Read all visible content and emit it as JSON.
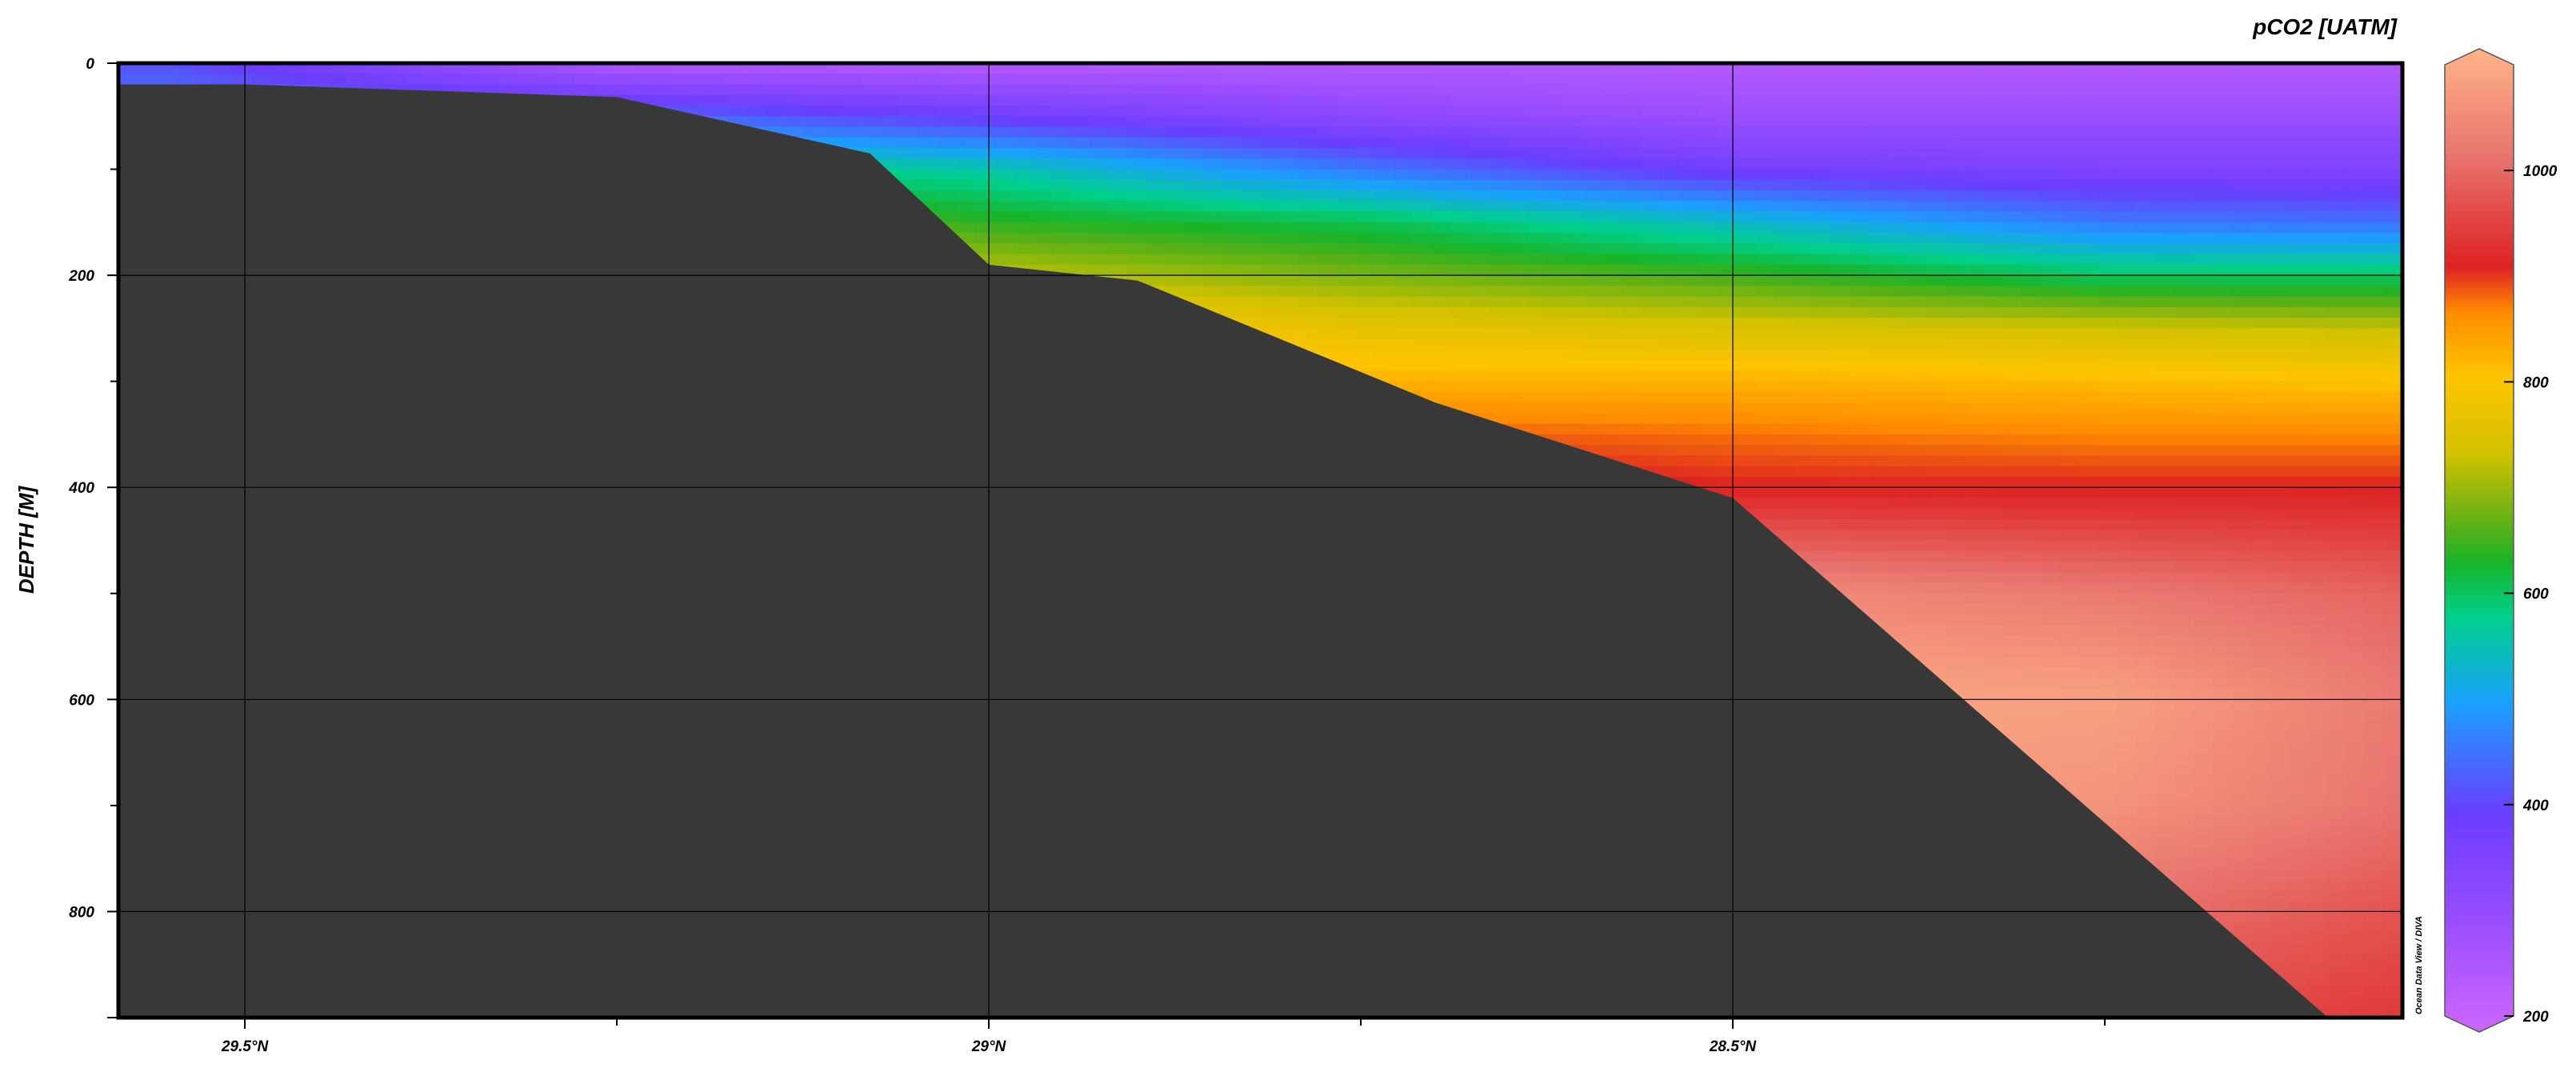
{
  "chart_data": {
    "type": "heatmap",
    "variable_label": "pCO2 [UATM]",
    "ylabel": "DEPTH [M]",
    "xlabel": "",
    "credit": "Ocean Data View / DIVA",
    "x_axis": {
      "unit": "degrees N latitude",
      "reversed": true,
      "range": [
        29.585,
        28.05
      ],
      "ticks": [
        29.5,
        29.0,
        28.5
      ],
      "tick_labels": [
        "29.5°N",
        "29°N",
        "28.5°N"
      ],
      "minor_ticks": [
        29.75,
        29.25,
        28.75,
        28.25
      ]
    },
    "y_axis": {
      "unit": "m",
      "reversed": true,
      "range": [
        0,
        900
      ],
      "ticks": [
        0,
        200,
        400,
        600,
        800
      ],
      "tick_labels": [
        "0",
        "200",
        "400",
        "600",
        "800"
      ],
      "minor_ticks": [
        100,
        300,
        500,
        700
      ]
    },
    "colorbar": {
      "range": [
        200,
        1100
      ],
      "ticks": [
        200,
        400,
        600,
        800,
        1000
      ],
      "tick_labels": [
        "200",
        "400",
        "600",
        "800",
        "1000"
      ],
      "extend": "both",
      "colors": [
        "#cc66ff",
        "#9b4dff",
        "#6a3dff",
        "#1aa0ff",
        "#00d08a",
        "#19b429",
        "#55b018",
        "#d4c200",
        "#ffc400",
        "#ff8a00",
        "#dd2222",
        "#e8736e",
        "#ffb488"
      ],
      "color_positions": [
        200,
        300,
        400,
        500,
        580,
        630,
        660,
        730,
        800,
        860,
        900,
        1000,
        1100
      ]
    },
    "grid": true,
    "bathymetry": {
      "color": "#383838",
      "lat": [
        29.585,
        29.5,
        29.25,
        29.08,
        29.0,
        28.9,
        28.7,
        28.5,
        28.1
      ],
      "depth": [
        20,
        20,
        32,
        85,
        190,
        205,
        320,
        410,
        900
      ]
    },
    "field": {
      "description": "Gridded pCO2 values (uatm) by latitude and depth",
      "lat_nodes": [
        29.55,
        29.25,
        29.0,
        28.75,
        28.5,
        28.25,
        28.05
      ],
      "depth_nodes": [
        0,
        50,
        100,
        150,
        200,
        250,
        300,
        350,
        400,
        500,
        600,
        700,
        800,
        900
      ],
      "values": [
        [
          420,
          260,
          250,
          250,
          250,
          250,
          250
        ],
        [
          470,
          450,
          390,
          330,
          300,
          300,
          300
        ],
        [
          600,
          600,
          560,
          460,
          380,
          360,
          360
        ],
        [
          780,
          700,
          640,
          610,
          540,
          460,
          450
        ],
        [
          880,
          760,
          720,
          680,
          650,
          600,
          600
        ],
        [
          940,
          840,
          800,
          760,
          740,
          730,
          720
        ],
        [
          980,
          920,
          860,
          820,
          820,
          810,
          800
        ],
        [
          1000,
          980,
          920,
          880,
          870,
          860,
          860
        ],
        [
          1000,
          1000,
          960,
          920,
          900,
          900,
          900
        ],
        [
          1000,
          1000,
          1000,
          1030,
          1040,
          1010,
          980
        ],
        [
          1000,
          1000,
          1000,
          1060,
          1080,
          1070,
          1010
        ],
        [
          1000,
          1000,
          1000,
          1060,
          1070,
          1050,
          1000
        ],
        [
          1000,
          1000,
          1000,
          1050,
          1030,
          1000,
          960
        ],
        [
          1000,
          1000,
          1000,
          1030,
          980,
          960,
          930
        ]
      ]
    }
  }
}
